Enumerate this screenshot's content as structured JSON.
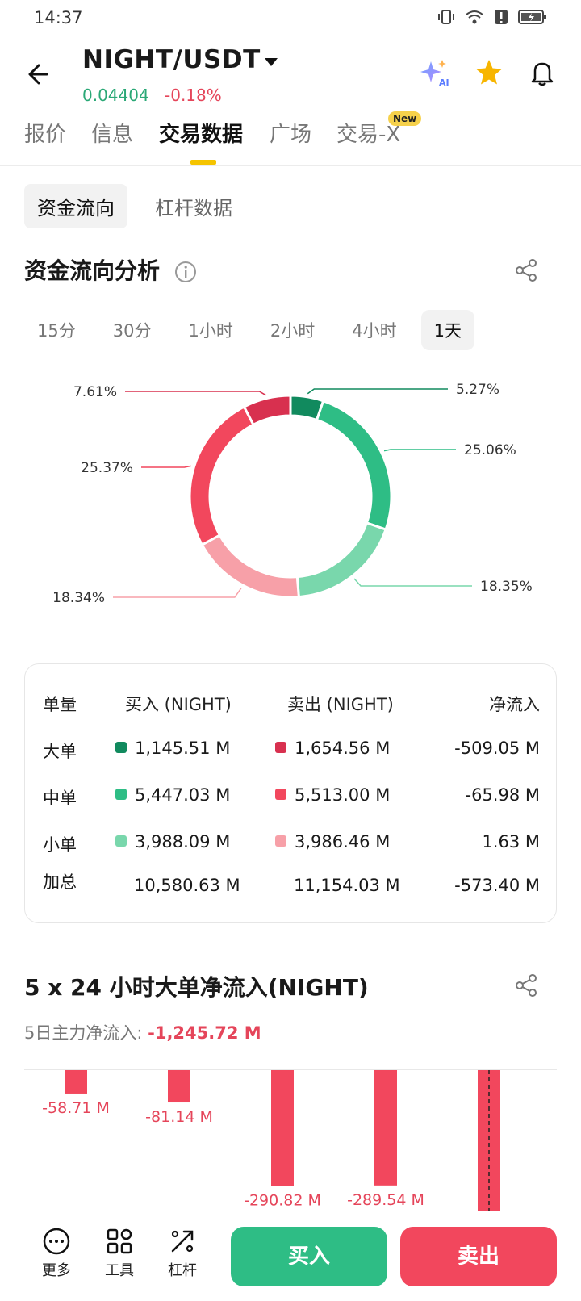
{
  "status_bar": {
    "time": "14:37"
  },
  "header": {
    "pair": "NIGHT/USDT",
    "price": "0.04404",
    "change": "-0.18%"
  },
  "tabs": [
    {
      "label": "报价"
    },
    {
      "label": "信息"
    },
    {
      "label": "交易数据"
    },
    {
      "label": "广场"
    },
    {
      "label": "交易-X"
    }
  ],
  "new_badge": "New",
  "subtabs": [
    {
      "label": "资金流向"
    },
    {
      "label": "杠杆数据"
    }
  ],
  "flow_section": {
    "title": "资金流向分析"
  },
  "periods": [
    {
      "label": "15分"
    },
    {
      "label": "30分"
    },
    {
      "label": "1小时"
    },
    {
      "label": "2小时"
    },
    {
      "label": "4小时"
    },
    {
      "label": "1天"
    }
  ],
  "chart_data": {
    "type": "pie",
    "donut": true,
    "slices": [
      {
        "label": "5.27%",
        "value": 5.27,
        "color": "#118a5e"
      },
      {
        "label": "25.06%",
        "value": 25.06,
        "color": "#2ebd85"
      },
      {
        "label": "18.35%",
        "value": 18.35,
        "color": "#79d7ac"
      },
      {
        "label": "18.34%",
        "value": 18.34,
        "color": "#f7a0a8"
      },
      {
        "label": "25.37%",
        "value": 25.37,
        "color": "#f2475d"
      },
      {
        "label": "7.61%",
        "value": 7.61,
        "color": "#d8304f"
      }
    ]
  },
  "flow_table": {
    "headers": [
      "单量",
      "买入 (NIGHT)",
      "卖出 (NIGHT)",
      "净流入"
    ],
    "rows": [
      {
        "name": "大单",
        "buy": "1,145.51 M",
        "sell": "1,654.56 M",
        "net": "-509.05 M",
        "buy_color": "#118a5e",
        "sell_color": "#d8304f"
      },
      {
        "name": "中单",
        "buy": "5,447.03 M",
        "sell": "5,513.00 M",
        "net": "-65.98 M",
        "buy_color": "#2ebd85",
        "sell_color": "#f2475d"
      },
      {
        "name": "小单",
        "buy": "3,988.09 M",
        "sell": "3,986.46 M",
        "net": "1.63 M",
        "buy_color": "#79d7ac",
        "sell_color": "#f7a0a8"
      }
    ],
    "total": {
      "name": "加总",
      "buy": "10,580.63 M",
      "sell": "11,154.03 M",
      "net": "-573.40 M"
    }
  },
  "bigflow_section": {
    "title": "5 x 24 小时大单净流入(NIGHT)",
    "summary_label": "5日主力净流入: ",
    "summary_value": "-1,245.72 M",
    "chart_data": {
      "type": "bar",
      "values": [
        -58.71,
        -81.14,
        -290.82,
        -289.54,
        -525.51
      ],
      "labels": [
        "-58.71 M",
        "-81.14 M",
        "-290.82 M",
        "-289.54 M",
        ""
      ]
    }
  },
  "bottom_bar": {
    "more": "更多",
    "tools": "工具",
    "leverage": "杠杆",
    "buy": "买入",
    "sell": "卖出"
  }
}
